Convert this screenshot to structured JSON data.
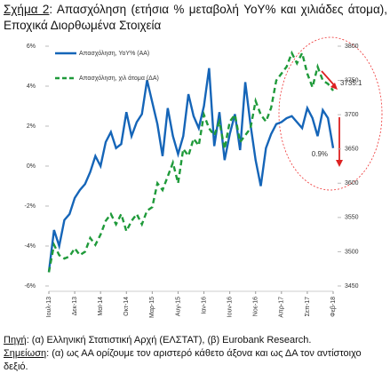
{
  "chart_data": {
    "type": "line",
    "title_label": "Σχήμα 2",
    "title": ": Απασχόληση (ετήσια % μεταβολή YoY% και χιλιάδες άτομα), Εποχικά Διορθωμένα Στοιχεία",
    "categories": [
      "Ιουλ-13",
      null,
      null,
      null,
      null,
      "Δεκ-13",
      null,
      null,
      null,
      null,
      "Μαϊ-14",
      null,
      null,
      null,
      null,
      "Οκτ-14",
      null,
      null,
      null,
      null,
      "Μαρ-15",
      null,
      null,
      null,
      null,
      "Αυγ-15",
      null,
      null,
      null,
      null,
      "Ιαν-16",
      null,
      null,
      null,
      null,
      "Ιουν-16",
      null,
      null,
      null,
      null,
      "Νοε-16",
      null,
      null,
      null,
      null,
      "Απρ-17",
      null,
      null,
      null,
      null,
      "Σεπ-17",
      null,
      null,
      null,
      null,
      "Φεβ-18"
    ],
    "series": [
      {
        "name": "Απασχόληση, YoY% (ΑΑ)",
        "color": "#1565b8",
        "axis": "y",
        "values": [
          -5.3,
          -3.2,
          -4.0,
          -2.7,
          -2.4,
          -1.6,
          -1.2,
          -0.9,
          -0.3,
          0.5,
          0.0,
          1.2,
          1.7,
          0.9,
          1.1,
          2.7,
          1.5,
          2.2,
          2.6,
          4.3,
          3.2,
          2.1,
          0.5,
          2.9,
          1.5,
          0.6,
          1.5,
          3.6,
          2.5,
          1.9,
          3.0,
          4.9,
          1.0,
          2.7,
          0.3,
          1.6,
          2.6,
          0.8,
          4.2,
          2.1,
          0.3,
          -1.0,
          0.9,
          1.6,
          2.1,
          2.2,
          2.4,
          2.5,
          2.2,
          1.9,
          2.9,
          2.4,
          1.5,
          2.8,
          2.4,
          0.9
        ]
      },
      {
        "name": "Απασχόληση, χιλ άτομα (ΔΑ)",
        "color": "#1f9a3a",
        "axis": "y2",
        "dashed": true,
        "values": [
          3470,
          3510,
          3495,
          3490,
          3493,
          3505,
          3495,
          3500,
          3520,
          3510,
          3525,
          3545,
          3555,
          3540,
          3555,
          3530,
          3545,
          3555,
          3540,
          3560,
          3565,
          3600,
          3590,
          3610,
          3630,
          3600,
          3650,
          3640,
          3665,
          3655,
          3700,
          3680,
          3670,
          3690,
          3650,
          3690,
          3700,
          3660,
          3670,
          3680,
          3720,
          3700,
          3690,
          3710,
          3750,
          3760,
          3770,
          3790,
          3775,
          3790,
          3760,
          3740,
          3770,
          3750,
          3745,
          3735.1
        ]
      }
    ],
    "ylim": [
      -6,
      6
    ],
    "yticks": [
      {
        "value": -6,
        "label": "-6%"
      },
      {
        "value": -4,
        "label": "-4%"
      },
      {
        "value": -2,
        "label": "-2%"
      },
      {
        "value": 0,
        "label": "0%"
      },
      {
        "value": 2,
        "label": "2%"
      },
      {
        "value": 4,
        "label": "4%"
      },
      {
        "value": 6,
        "label": "6%"
      }
    ],
    "y2lim": [
      3450,
      3800
    ],
    "y2ticks": [
      3450,
      3500,
      3550,
      3600,
      3650,
      3700,
      3750,
      3800
    ],
    "annotations": [
      {
        "text": "0.9%",
        "series": 0
      },
      {
        "text": "3735.1",
        "series": 1
      }
    ],
    "legend": "top-left",
    "source_label": "Πηγή",
    "source": ": (α) Ελληνική Στατιστική Αρχή (ΕΛΣΤΑΤ), (β) Eurobank Research.",
    "note_label": "Σημείωση",
    "note": ": (α) ως ΑΑ ορίζουμε τον αριστερό κάθετο άξονα και ως ΔΑ τον αντίστοιχο δεξιό."
  }
}
